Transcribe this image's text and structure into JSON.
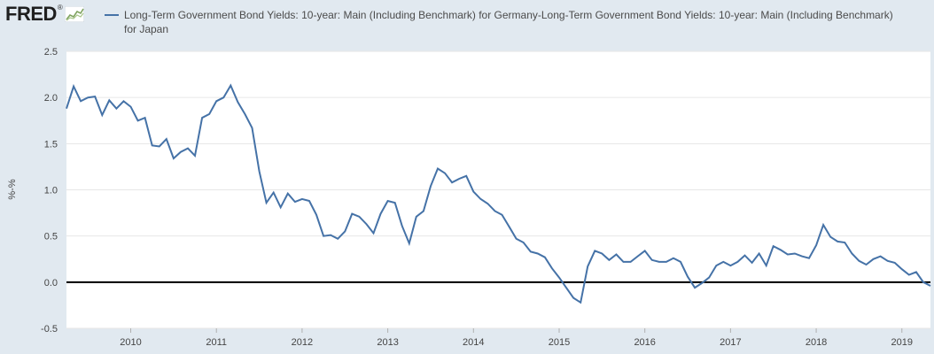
{
  "header": {
    "logo_text": "FRED",
    "logo_reg": "®",
    "series_color": "#4572a7"
  },
  "chart_data": {
    "type": "line",
    "series": [
      {
        "name": "Long-Term Government Bond Yields: 10-year: Main (Including Benchmark) for Germany-Long-Term Government Bond Yields: 10-year: Main (Including Benchmark) for Japan",
        "color": "#4572a7",
        "x": [
          "2009-04",
          "2009-05",
          "2009-06",
          "2009-07",
          "2009-08",
          "2009-09",
          "2009-10",
          "2009-11",
          "2009-12",
          "2010-01",
          "2010-02",
          "2010-03",
          "2010-04",
          "2010-05",
          "2010-06",
          "2010-07",
          "2010-08",
          "2010-09",
          "2010-10",
          "2010-11",
          "2010-12",
          "2011-01",
          "2011-02",
          "2011-03",
          "2011-04",
          "2011-05",
          "2011-06",
          "2011-07",
          "2011-08",
          "2011-09",
          "2011-10",
          "2011-11",
          "2011-12",
          "2012-01",
          "2012-02",
          "2012-03",
          "2012-04",
          "2012-05",
          "2012-06",
          "2012-07",
          "2012-08",
          "2012-09",
          "2012-10",
          "2012-11",
          "2012-12",
          "2013-01",
          "2013-02",
          "2013-03",
          "2013-04",
          "2013-05",
          "2013-06",
          "2013-07",
          "2013-08",
          "2013-09",
          "2013-10",
          "2013-11",
          "2013-12",
          "2014-01",
          "2014-02",
          "2014-03",
          "2014-04",
          "2014-05",
          "2014-06",
          "2014-07",
          "2014-08",
          "2014-09",
          "2014-10",
          "2014-11",
          "2014-12",
          "2015-01",
          "2015-02",
          "2015-03",
          "2015-04",
          "2015-05",
          "2015-06",
          "2015-07",
          "2015-08",
          "2015-09",
          "2015-10",
          "2015-11",
          "2015-12",
          "2016-01",
          "2016-02",
          "2016-03",
          "2016-04",
          "2016-05",
          "2016-06",
          "2016-07",
          "2016-08",
          "2016-09",
          "2016-10",
          "2016-11",
          "2016-12",
          "2017-01",
          "2017-02",
          "2017-03",
          "2017-04",
          "2017-05",
          "2017-06",
          "2017-07",
          "2017-08",
          "2017-09",
          "2017-10",
          "2017-11",
          "2017-12",
          "2018-01",
          "2018-02",
          "2018-03",
          "2018-04",
          "2018-05",
          "2018-06",
          "2018-07",
          "2018-08",
          "2018-09",
          "2018-10",
          "2018-11",
          "2018-12",
          "2019-01",
          "2019-02",
          "2019-03",
          "2019-04",
          "2019-05"
        ],
        "values": [
          1.88,
          2.12,
          1.96,
          2.0,
          2.01,
          1.81,
          1.97,
          1.88,
          1.96,
          1.9,
          1.75,
          1.78,
          1.48,
          1.47,
          1.55,
          1.34,
          1.41,
          1.45,
          1.37,
          1.78,
          1.82,
          1.96,
          2.0,
          2.13,
          1.95,
          1.82,
          1.67,
          1.2,
          0.86,
          0.97,
          0.81,
          0.96,
          0.87,
          0.9,
          0.88,
          0.73,
          0.5,
          0.51,
          0.47,
          0.55,
          0.74,
          0.71,
          0.63,
          0.53,
          0.74,
          0.88,
          0.86,
          0.61,
          0.42,
          0.71,
          0.77,
          1.04,
          1.23,
          1.18,
          1.08,
          1.12,
          1.15,
          0.98,
          0.9,
          0.85,
          0.77,
          0.73,
          0.6,
          0.47,
          0.43,
          0.33,
          0.31,
          0.27,
          0.15,
          0.05,
          -0.06,
          -0.17,
          -0.22,
          0.17,
          0.34,
          0.31,
          0.24,
          0.3,
          0.22,
          0.22,
          0.28,
          0.34,
          0.24,
          0.22,
          0.22,
          0.26,
          0.22,
          0.06,
          -0.06,
          -0.01,
          0.05,
          0.18,
          0.22,
          0.18,
          0.22,
          0.29,
          0.21,
          0.31,
          0.18,
          0.39,
          0.35,
          0.3,
          0.31,
          0.28,
          0.26,
          0.4,
          0.62,
          0.49,
          0.44,
          0.43,
          0.31,
          0.23,
          0.19,
          0.25,
          0.28,
          0.23,
          0.21,
          0.14,
          0.08,
          0.11,
          0.0,
          -0.04
        ]
      }
    ],
    "ylabel": "%-%",
    "ylim": [
      -0.5,
      2.5
    ],
    "yticks": [
      -0.5,
      0.0,
      0.5,
      1.0,
      1.5,
      2.0,
      2.5
    ],
    "ytick_labels": [
      "-0.5",
      "0.0",
      "0.5",
      "1.0",
      "1.5",
      "2.0",
      "2.5"
    ],
    "xlim": [
      "2009-04",
      "2019-05"
    ],
    "xticks": [
      "2010-01",
      "2011-01",
      "2012-01",
      "2013-01",
      "2014-01",
      "2015-01",
      "2016-01",
      "2017-01",
      "2018-01",
      "2019-01"
    ],
    "xtick_labels": [
      "2010",
      "2011",
      "2012",
      "2013",
      "2014",
      "2015",
      "2016",
      "2017",
      "2018",
      "2019"
    ],
    "zero_line": true,
    "grid": "horizontal"
  }
}
